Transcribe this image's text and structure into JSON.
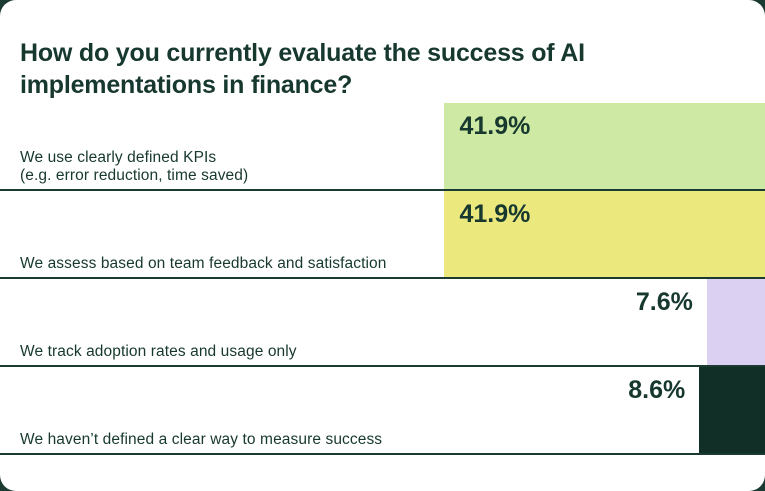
{
  "colors": {
    "page_background": "#1b3a31",
    "card_background": "#ffffff",
    "text": "#17382f",
    "separator": "#1b3a31"
  },
  "title": "How do you currently evaluate the success of AI implementations in finance?",
  "chart_data": {
    "type": "bar",
    "orientation": "horizontal",
    "bar_alignment": "right",
    "value_unit": "%",
    "xlim": [
      0,
      100
    ],
    "grid": false,
    "legend": false,
    "title": "How do you currently evaluate the success of AI implementations in finance?",
    "categories": [
      "We use clearly defined KPIs (e.g. error reduction, time saved)",
      "We assess based on team feedback and satisfaction",
      "We track adoption rates and usage only",
      "We haven’t defined a clear way to measure success"
    ],
    "values": [
      41.9,
      41.9,
      7.6,
      8.6
    ],
    "bars": [
      {
        "label_lines": [
          "We use clearly defined KPIs",
          "(e.g. error reduction, time saved)"
        ],
        "value": 41.9,
        "value_label": "41.9%",
        "bar_color": "#cde9a4",
        "value_position": "inside"
      },
      {
        "label_lines": [
          "We assess based on team feedback and satisfaction"
        ],
        "value": 41.9,
        "value_label": "41.9%",
        "bar_color": "#ebe87e",
        "value_position": "inside"
      },
      {
        "label_lines": [
          "We track adoption rates and usage only"
        ],
        "value": 7.6,
        "value_label": "7.6%",
        "bar_color": "#dbcff2",
        "value_position": "outside"
      },
      {
        "label_lines": [
          "We haven’t defined a clear way to measure success"
        ],
        "value": 8.6,
        "value_label": "8.6%",
        "bar_color": "#112e27",
        "value_position": "outside"
      }
    ]
  }
}
